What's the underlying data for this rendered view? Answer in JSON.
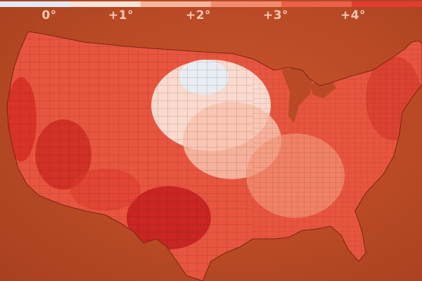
{
  "legend": {
    "ticks": [
      "0°",
      "+1°",
      "+2°",
      "+3°",
      "+4°"
    ],
    "colors": [
      "#dfeaf7",
      "#fbe2d6",
      "#f7b59c",
      "#f28b70",
      "#ec5f48",
      "#e23b2f",
      "#b81c1c"
    ]
  },
  "map": {
    "region": "contiguous-us-counties",
    "background_color": "#b94a25",
    "hotspots": [
      "southwest",
      "texas",
      "california",
      "northeast"
    ],
    "coolspots": [
      "upper-midwest",
      "central-plains"
    ]
  }
}
